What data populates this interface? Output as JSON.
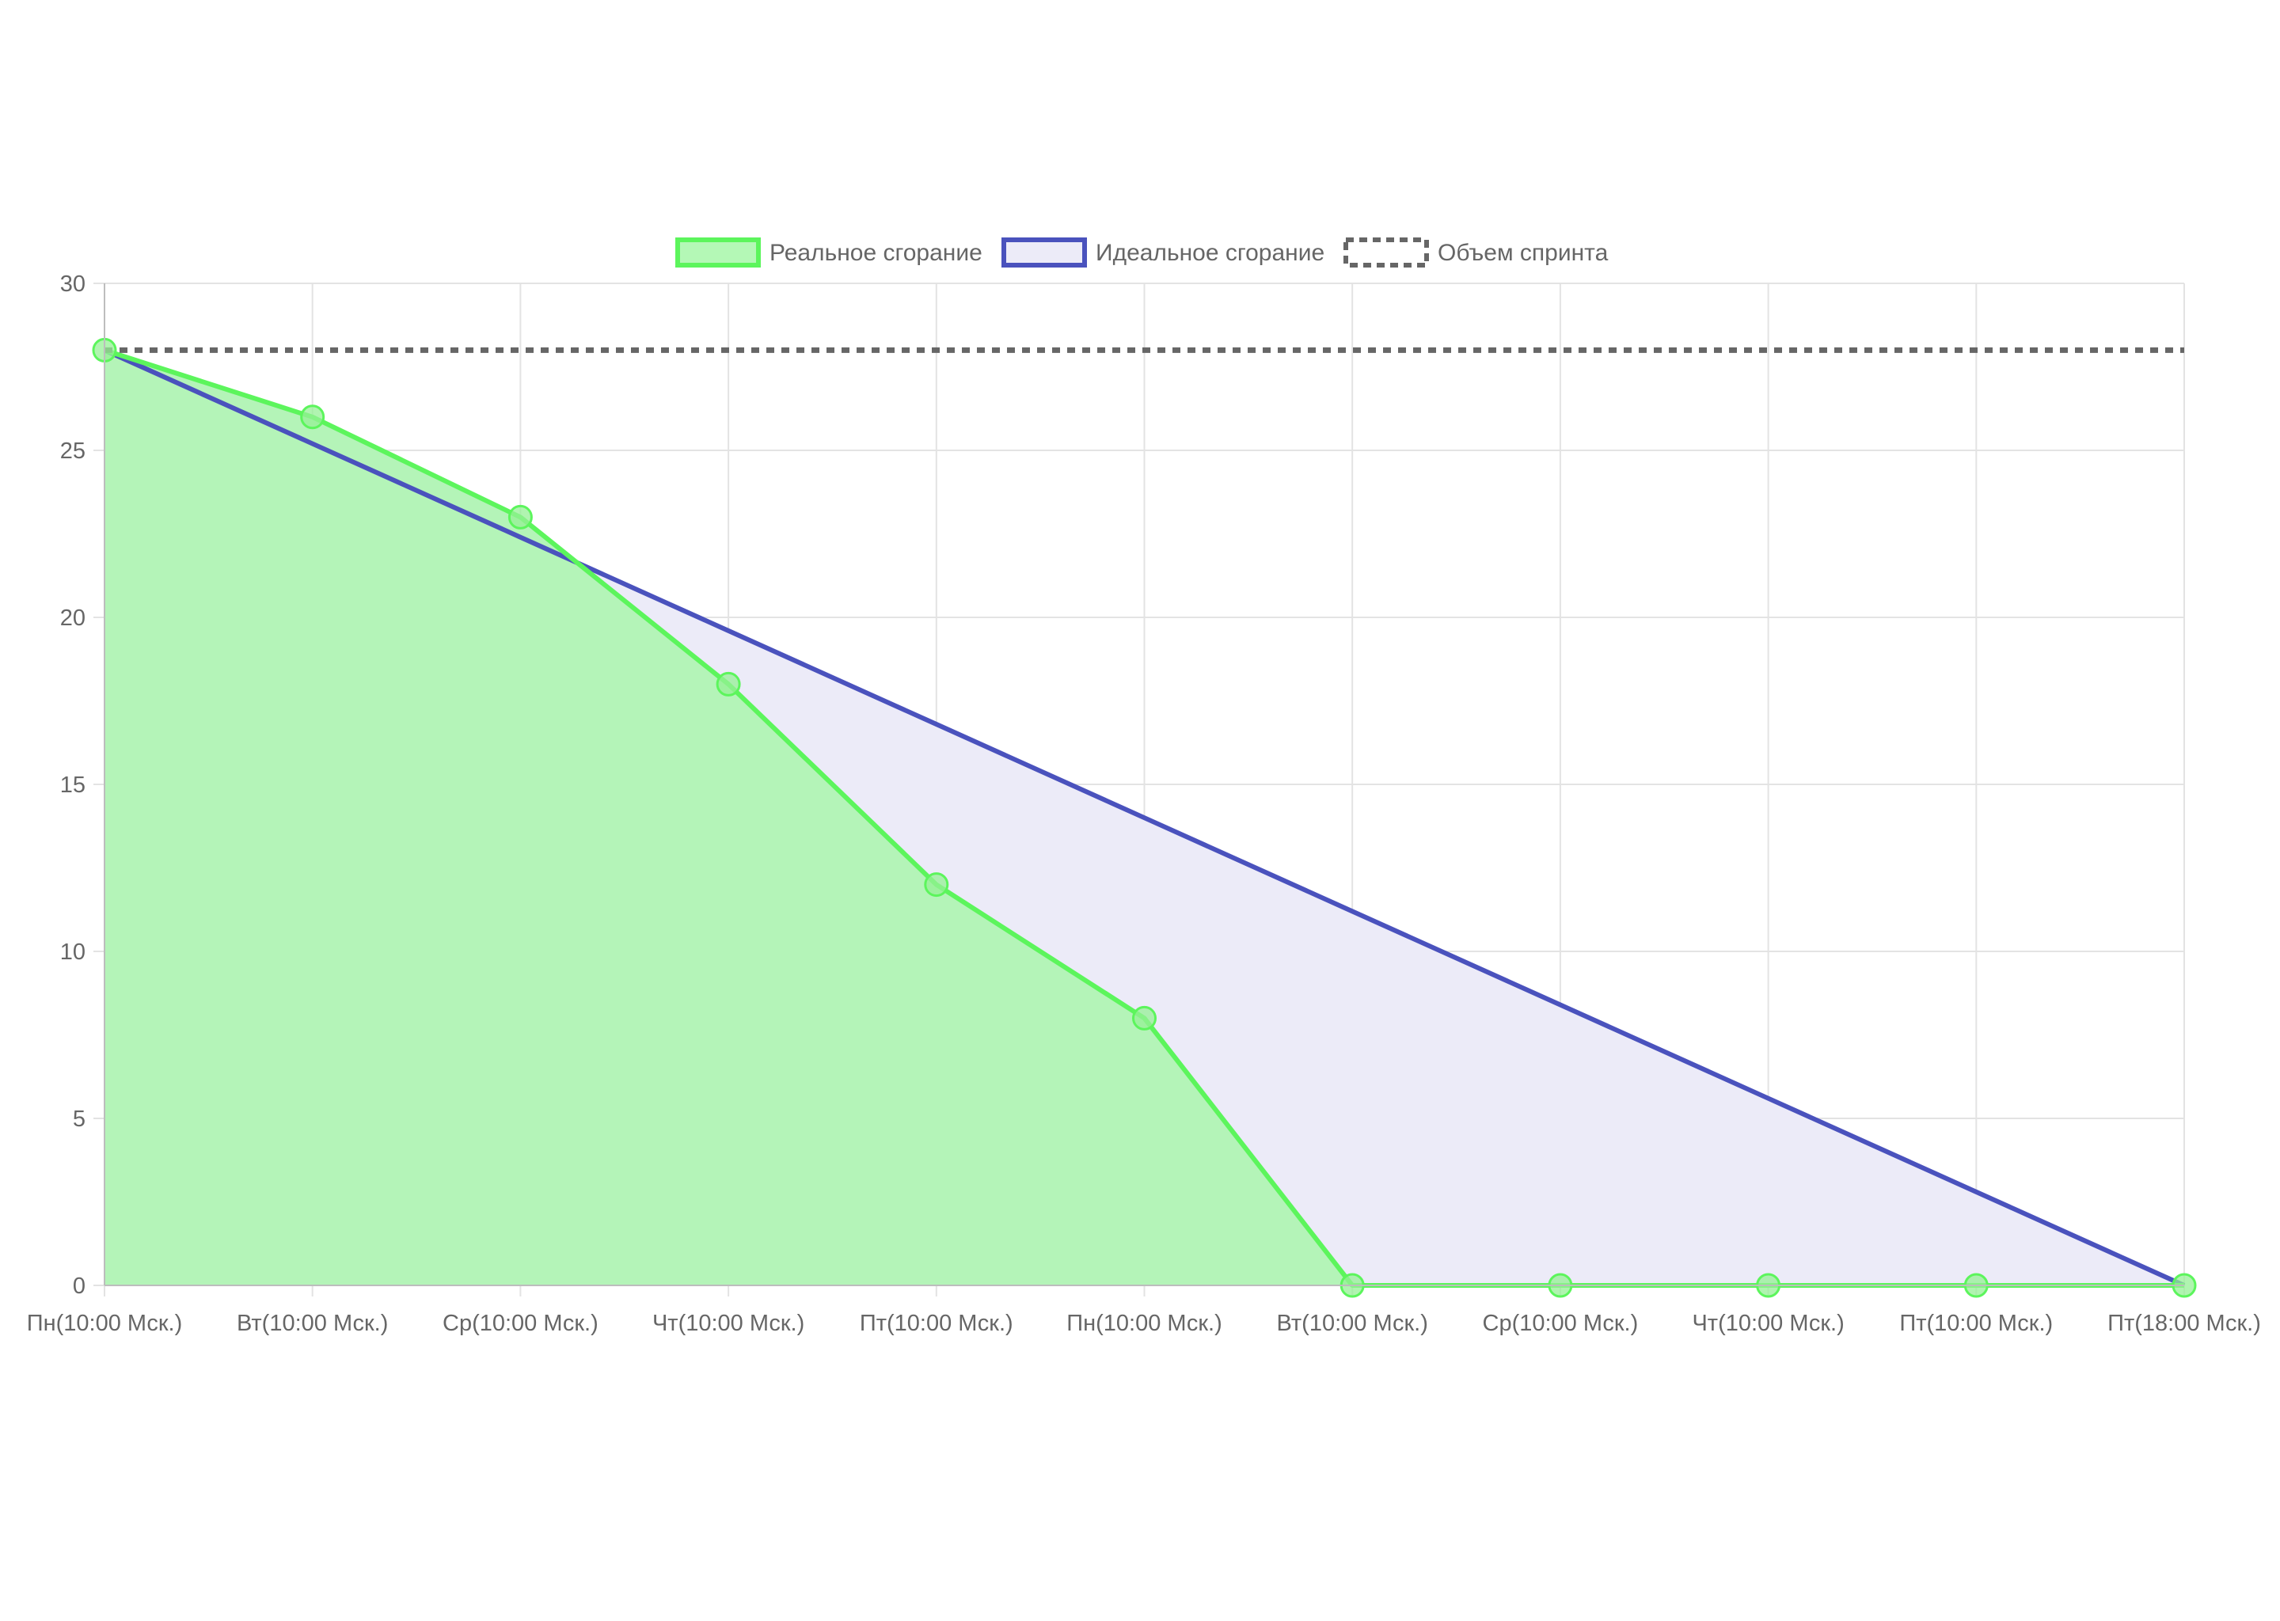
{
  "chart_data": {
    "type": "line",
    "categories": [
      "Пн(10:00 Мск.)",
      "Вт(10:00 Мск.)",
      "Ср(10:00 Мск.)",
      "Чт(10:00 Мск.)",
      "Пт(10:00 Мск.)",
      "Пн(10:00 Мск.)",
      "Вт(10:00 Мск.)",
      "Ср(10:00 Мск.)",
      "Чт(10:00 Мск.)",
      "Пт(10:00 Мск.)",
      "Пт(18:00 Мск.)"
    ],
    "series": [
      {
        "name": "Реальное сгорание",
        "values": [
          28,
          26,
          23,
          18,
          12,
          8,
          0,
          0,
          0,
          0,
          0
        ],
        "color": "#5cf55c",
        "fill": "#b4f4b8",
        "style": "solid-filled-with-points"
      },
      {
        "name": "Идеальное сгорание",
        "values": [
          28,
          25.2,
          22.4,
          19.6,
          16.8,
          14,
          11.2,
          8.4,
          5.6,
          2.8,
          0
        ],
        "color": "#4a52bd",
        "fill": "#ecebf8",
        "style": "solid-filled"
      },
      {
        "name": "Объем спринта",
        "values": [
          28,
          28,
          28,
          28,
          28,
          28,
          28,
          28,
          28,
          28,
          28
        ],
        "color": "#666666",
        "style": "dashed"
      }
    ],
    "y_ticks": [
      "0",
      "5",
      "10",
      "15",
      "20",
      "25",
      "30"
    ],
    "ylim": [
      0,
      30
    ],
    "grid": true,
    "legend_position": "top"
  }
}
